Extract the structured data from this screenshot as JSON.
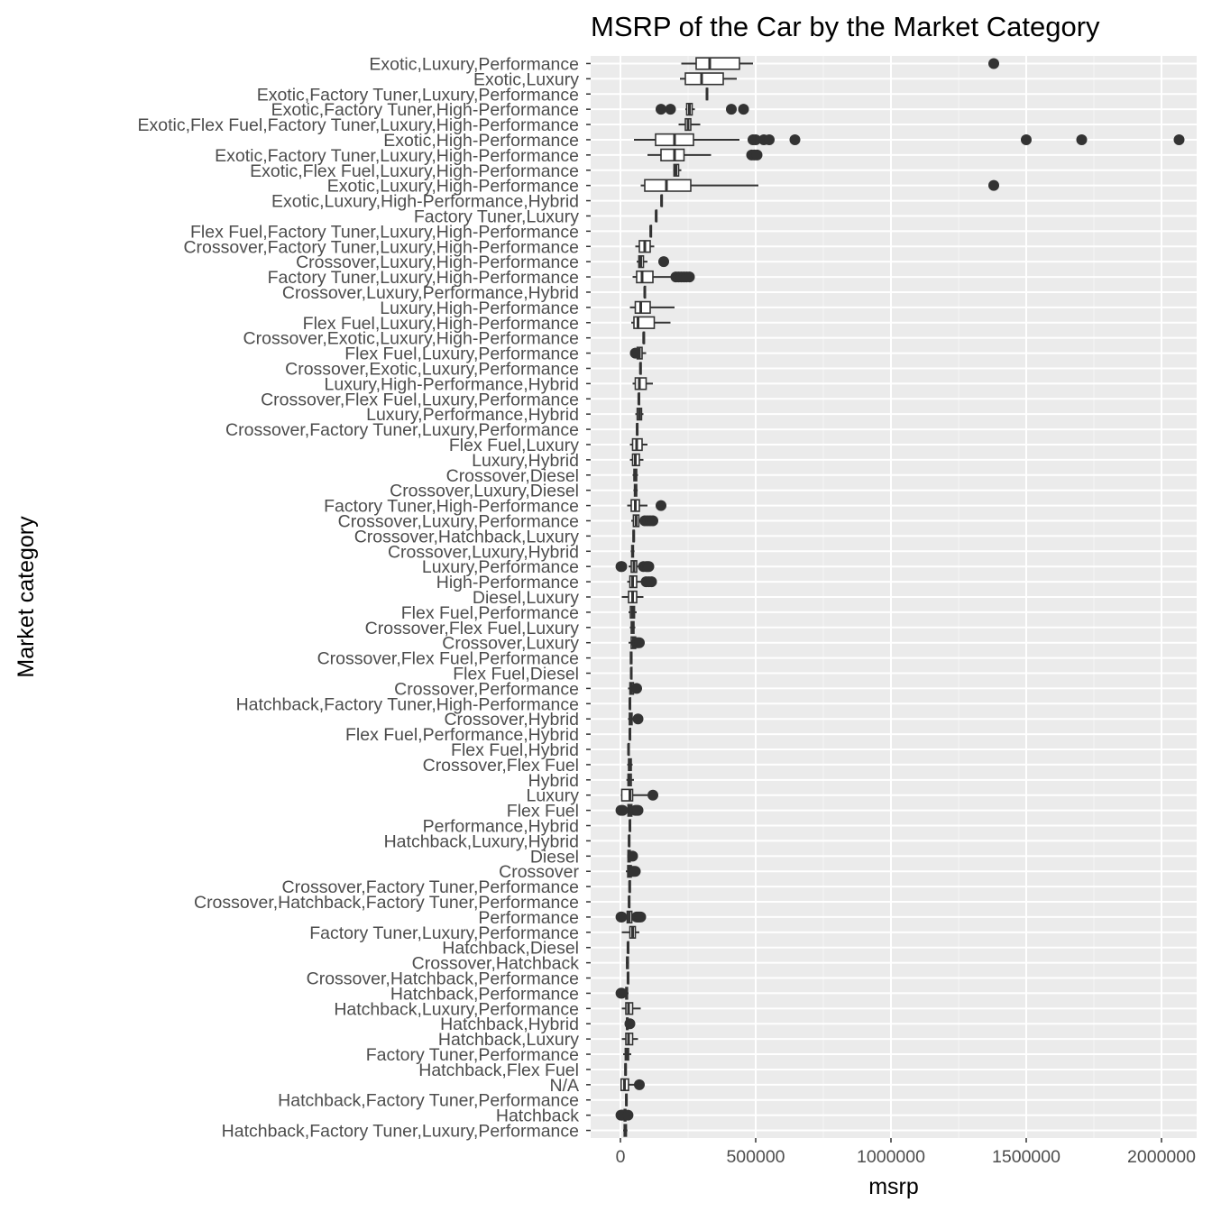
{
  "chart_data": {
    "type": "boxplot",
    "orientation": "horizontal",
    "title": "MSRP of the Car by the Market Category",
    "xlabel": "msrp",
    "ylabel": "Market category",
    "xlim": [
      -110000,
      2130000
    ],
    "x_ticks": [
      0,
      500000,
      1000000,
      1500000,
      2000000
    ],
    "x_tick_labels": [
      "0",
      "500000",
      "1000000",
      "1500000",
      "2000000"
    ],
    "grid": true,
    "legend": "none",
    "colors": {
      "panel": "#ebebeb",
      "grid_major": "#ffffff",
      "grid_minor": "#f5f5f5",
      "box": "#333333",
      "text": "#4d4d4d"
    },
    "categories": [
      {
        "label": "Exotic,Luxury,Performance",
        "stats": [
          225000,
          280000,
          330000,
          440000,
          490000
        ],
        "outliers": [
          1380000
        ]
      },
      {
        "label": "Exotic,Luxury",
        "stats": [
          220000,
          240000,
          300000,
          380000,
          430000
        ],
        "outliers": []
      },
      {
        "label": "Exotic,Factory Tuner,Luxury,Performance",
        "stats": [
          315000,
          318000,
          320000,
          322000,
          325000
        ],
        "outliers": []
      },
      {
        "label": "Exotic,Factory Tuner,High-Performance",
        "stats": [
          240000,
          245000,
          255000,
          265000,
          275000
        ],
        "outliers": [
          150000,
          185000,
          410000,
          455000
        ]
      },
      {
        "label": "Exotic,Flex Fuel,Factory Tuner,Luxury,High-Performance",
        "stats": [
          215000,
          240000,
          250000,
          260000,
          295000
        ],
        "outliers": []
      },
      {
        "label": "Exotic,High-Performance",
        "stats": [
          50000,
          130000,
          200000,
          270000,
          440000
        ],
        "outliers": [
          490000,
          500000,
          530000,
          550000,
          645000,
          1500000,
          1705000,
          2065000
        ]
      },
      {
        "label": "Exotic,Factory Tuner,Luxury,High-Performance",
        "stats": [
          100000,
          150000,
          200000,
          235000,
          335000
        ],
        "outliers": [
          485000,
          495000,
          505000
        ]
      },
      {
        "label": "Exotic,Flex Fuel,Luxury,High-Performance",
        "stats": [
          195000,
          198000,
          205000,
          215000,
          225000
        ],
        "outliers": []
      },
      {
        "label": "Exotic,Luxury,High-Performance",
        "stats": [
          75000,
          90000,
          170000,
          260000,
          510000
        ],
        "outliers": [
          1380000
        ]
      },
      {
        "label": "Exotic,Luxury,High-Performance,Hybrid",
        "stats": [
          150000,
          151000,
          152000,
          153000,
          154000
        ],
        "outliers": []
      },
      {
        "label": "Factory Tuner,Luxury",
        "stats": [
          130000,
          131000,
          132000,
          133000,
          134000
        ],
        "outliers": []
      },
      {
        "label": "Flex Fuel,Factory Tuner,Luxury,High-Performance",
        "stats": [
          110000,
          111000,
          112000,
          113000,
          114000
        ],
        "outliers": []
      },
      {
        "label": "Crossover,Factory Tuner,Luxury,High-Performance",
        "stats": [
          55000,
          70000,
          90000,
          110000,
          125000
        ],
        "outliers": []
      },
      {
        "label": "Crossover,Luxury,High-Performance",
        "stats": [
          60000,
          68000,
          75000,
          85000,
          100000
        ],
        "outliers": [
          160000
        ]
      },
      {
        "label": "Factory Tuner,Luxury,High-Performance",
        "stats": [
          45000,
          60000,
          80000,
          120000,
          200000
        ],
        "outliers": [
          205000,
          215000,
          225000,
          235000,
          245000,
          255000
        ]
      },
      {
        "label": "Crossover,Luxury,Performance,Hybrid",
        "stats": [
          88000,
          89000,
          90000,
          91000,
          92000
        ],
        "outliers": []
      },
      {
        "label": "Luxury,High-Performance",
        "stats": [
          35000,
          55000,
          75000,
          110000,
          200000
        ],
        "outliers": []
      },
      {
        "label": "Flex Fuel,Luxury,High-Performance",
        "stats": [
          40000,
          50000,
          65000,
          125000,
          185000
        ],
        "outliers": []
      },
      {
        "label": "Crossover,Exotic,Luxury,High-Performance",
        "stats": [
          84000,
          85000,
          86000,
          87000,
          88000
        ],
        "outliers": []
      },
      {
        "label": "Flex Fuel,Luxury,Performance",
        "stats": [
          55000,
          62000,
          70000,
          80000,
          95000
        ],
        "outliers": [
          55000
        ]
      },
      {
        "label": "Crossover,Exotic,Luxury,Performance",
        "stats": [
          72000,
          73000,
          74000,
          75000,
          76000
        ],
        "outliers": []
      },
      {
        "label": "Luxury,High-Performance,Hybrid",
        "stats": [
          45000,
          55000,
          70000,
          95000,
          120000
        ],
        "outliers": []
      },
      {
        "label": "Crossover,Flex Fuel,Luxury,Performance",
        "stats": [
          66000,
          67000,
          68000,
          69000,
          70000
        ],
        "outliers": []
      },
      {
        "label": "Luxury,Performance,Hybrid",
        "stats": [
          55000,
          62000,
          70000,
          78000,
          85000
        ],
        "outliers": []
      },
      {
        "label": "Crossover,Factory Tuner,Luxury,Performance",
        "stats": [
          58000,
          60000,
          62000,
          64000,
          66000
        ],
        "outliers": []
      },
      {
        "label": "Flex Fuel,Luxury",
        "stats": [
          35000,
          45000,
          60000,
          80000,
          100000
        ],
        "outliers": []
      },
      {
        "label": "Luxury,Hybrid",
        "stats": [
          35000,
          45000,
          55000,
          70000,
          85000
        ],
        "outliers": []
      },
      {
        "label": "Crossover,Diesel",
        "stats": [
          45000,
          50000,
          55000,
          60000,
          65000
        ],
        "outliers": []
      },
      {
        "label": "Crossover,Luxury,Diesel",
        "stats": [
          48000,
          52000,
          56000,
          60000,
          64000
        ],
        "outliers": []
      },
      {
        "label": "Factory Tuner,High-Performance",
        "stats": [
          25000,
          40000,
          55000,
          70000,
          100000
        ],
        "outliers": [
          150000
        ]
      },
      {
        "label": "Crossover,Luxury,Performance",
        "stats": [
          40000,
          48000,
          58000,
          68000,
          85000
        ],
        "outliers": [
          90000,
          100000,
          110000,
          120000
        ]
      },
      {
        "label": "Crossover,Hatchback,Luxury",
        "stats": [
          45000,
          47000,
          49000,
          51000,
          53000
        ],
        "outliers": []
      },
      {
        "label": "Crossover,Luxury,Hybrid",
        "stats": [
          38000,
          42000,
          45000,
          48000,
          52000
        ],
        "outliers": []
      },
      {
        "label": "Luxury,Performance",
        "stats": [
          30000,
          40000,
          50000,
          60000,
          80000
        ],
        "outliers": [
          2000,
          5000,
          85000,
          95000,
          100000,
          105000
        ]
      },
      {
        "label": "High-Performance",
        "stats": [
          25000,
          35000,
          45000,
          60000,
          85000
        ],
        "outliers": [
          95000,
          105000,
          115000
        ]
      },
      {
        "label": "Diesel,Luxury",
        "stats": [
          5000,
          30000,
          45000,
          60000,
          85000
        ],
        "outliers": []
      },
      {
        "label": "Flex Fuel,Performance",
        "stats": [
          30000,
          37000,
          45000,
          52000,
          60000
        ],
        "outliers": []
      },
      {
        "label": "Crossover,Flex Fuel,Luxury",
        "stats": [
          35000,
          40000,
          45000,
          50000,
          55000
        ],
        "outliers": []
      },
      {
        "label": "Crossover,Luxury",
        "stats": [
          30000,
          40000,
          48000,
          56000,
          68000
        ],
        "outliers": [
          60000,
          65000,
          70000
        ]
      },
      {
        "label": "Crossover,Flex Fuel,Performance",
        "stats": [
          35000,
          37000,
          40000,
          42000,
          45000
        ],
        "outliers": []
      },
      {
        "label": "Flex Fuel,Diesel",
        "stats": [
          38000,
          39000,
          40000,
          41000,
          42000
        ],
        "outliers": []
      },
      {
        "label": "Crossover,Performance",
        "stats": [
          28000,
          35000,
          40000,
          48000,
          58000
        ],
        "outliers": [
          60000
        ]
      },
      {
        "label": "Hatchback,Factory Tuner,High-Performance",
        "stats": [
          33000,
          34000,
          35000,
          36000,
          37000
        ],
        "outliers": []
      },
      {
        "label": "Crossover,Hybrid",
        "stats": [
          28000,
          33000,
          38000,
          43000,
          50000
        ],
        "outliers": [
          65000
        ]
      },
      {
        "label": "Flex Fuel,Performance,Hybrid",
        "stats": [
          33000,
          34000,
          35000,
          36000,
          37000
        ],
        "outliers": []
      },
      {
        "label": "Flex Fuel,Hybrid",
        "stats": [
          28000,
          29000,
          30000,
          31000,
          32000
        ],
        "outliers": []
      },
      {
        "label": "Crossover,Flex Fuel",
        "stats": [
          25000,
          30000,
          35000,
          40000,
          45000
        ],
        "outliers": []
      },
      {
        "label": "Hybrid",
        "stats": [
          22000,
          28000,
          33000,
          40000,
          50000
        ],
        "outliers": []
      },
      {
        "label": "Luxury",
        "stats": [
          2000,
          5000,
          35000,
          45000,
          100000
        ],
        "outliers": [
          120000
        ]
      },
      {
        "label": "Flex Fuel",
        "stats": [
          20000,
          28000,
          35000,
          42000,
          55000
        ],
        "outliers": [
          2000,
          8000,
          55000,
          60000,
          65000
        ]
      },
      {
        "label": "Performance,Hybrid",
        "stats": [
          33000,
          34000,
          35000,
          36000,
          37000
        ],
        "outliers": []
      },
      {
        "label": "Hatchback,Luxury,Hybrid",
        "stats": [
          30000,
          31000,
          32000,
          33000,
          34000
        ],
        "outliers": []
      },
      {
        "label": "Diesel",
        "stats": [
          25000,
          28000,
          32000,
          36000,
          40000
        ],
        "outliers": [
          45000
        ]
      },
      {
        "label": "Crossover",
        "stats": [
          20000,
          27000,
          33000,
          40000,
          50000
        ],
        "outliers": [
          45000,
          50000,
          55000
        ]
      },
      {
        "label": "Crossover,Factory Tuner,Performance",
        "stats": [
          32000,
          33000,
          34000,
          35000,
          36000
        ],
        "outliers": []
      },
      {
        "label": "Crossover,Hatchback,Factory Tuner,Performance",
        "stats": [
          30000,
          31000,
          32000,
          33000,
          34000
        ],
        "outliers": []
      },
      {
        "label": "Performance",
        "stats": [
          15000,
          25000,
          32000,
          42000,
          60000
        ],
        "outliers": [
          2000,
          5000,
          60000,
          65000,
          70000,
          75000
        ]
      },
      {
        "label": "Factory Tuner,Luxury,Performance",
        "stats": [
          5000,
          35000,
          45000,
          55000,
          70000
        ],
        "outliers": []
      },
      {
        "label": "Hatchback,Diesel",
        "stats": [
          26000,
          27000,
          28000,
          29000,
          30000
        ],
        "outliers": []
      },
      {
        "label": "Crossover,Hatchback",
        "stats": [
          20000,
          23000,
          26000,
          29000,
          32000
        ],
        "outliers": []
      },
      {
        "label": "Crossover,Hatchback,Performance",
        "stats": [
          26000,
          27000,
          28000,
          29000,
          30000
        ],
        "outliers": []
      },
      {
        "label": "Hatchback,Performance",
        "stats": [
          15000,
          20000,
          23000,
          26000,
          30000
        ],
        "outliers": [
          2000,
          5000
        ]
      },
      {
        "label": "Hatchback,Luxury,Performance",
        "stats": [
          5000,
          20000,
          30000,
          45000,
          75000
        ],
        "outliers": []
      },
      {
        "label": "Hatchback,Hybrid",
        "stats": [
          20000,
          23000,
          25000,
          28000,
          32000
        ],
        "outliers": [
          35000
        ]
      },
      {
        "label": "Hatchback,Luxury",
        "stats": [
          5000,
          20000,
          30000,
          45000,
          65000
        ],
        "outliers": []
      },
      {
        "label": "Factory Tuner,Performance",
        "stats": [
          10000,
          18000,
          25000,
          30000,
          40000
        ],
        "outliers": []
      },
      {
        "label": "Hatchback,Flex Fuel",
        "stats": [
          15000,
          17000,
          19000,
          21000,
          23000
        ],
        "outliers": []
      },
      {
        "label": "N/A",
        "stats": [
          2000,
          2500,
          15000,
          30000,
          60000
        ],
        "outliers": [
          70000
        ]
      },
      {
        "label": "Hatchback,Factory Tuner,Performance",
        "stats": [
          18000,
          20000,
          22000,
          24000,
          27000
        ],
        "outliers": []
      },
      {
        "label": "Hatchback",
        "stats": [
          10000,
          14000,
          17000,
          20000,
          25000
        ],
        "outliers": [
          2000,
          5000,
          8000,
          28000
        ]
      },
      {
        "label": "Hatchback,Factory Tuner,Luxury,Performance",
        "stats": [
          10000,
          14000,
          18000,
          22000,
          26000
        ],
        "outliers": []
      }
    ]
  }
}
